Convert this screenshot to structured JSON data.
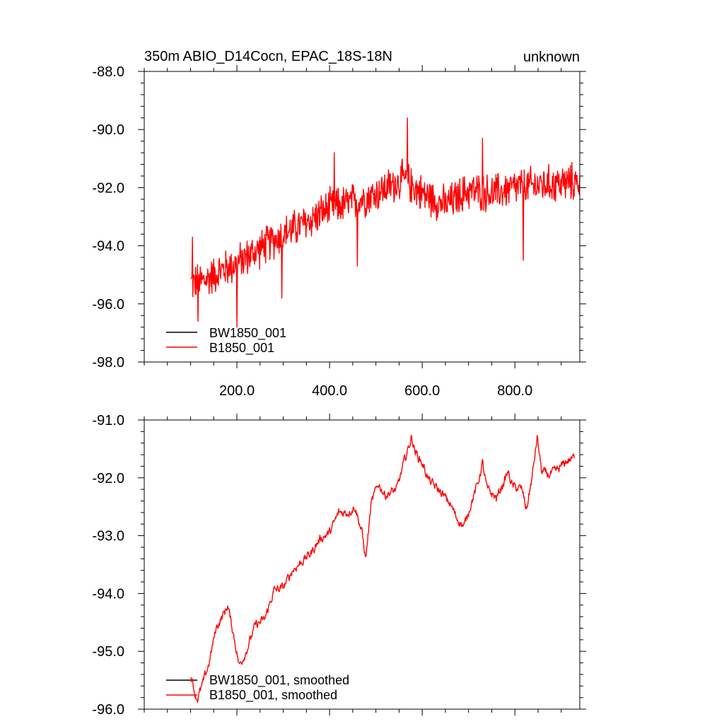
{
  "chart_data": [
    {
      "type": "line",
      "title_left": "350m ABIO_D14Cocn, EPAC_18S-18N",
      "title_right": "unknown",
      "xlim": [
        0,
        940
      ],
      "ylim": [
        -98,
        -88
      ],
      "x_ticks": [
        200,
        400,
        600,
        800
      ],
      "x_tick_labels": [
        "200.0",
        "400.0",
        "600.0",
        "800.0"
      ],
      "x_minor_step": 50,
      "y_ticks": [
        -98,
        -96,
        -94,
        -92,
        -90,
        -88
      ],
      "y_tick_labels": [
        "-98.0",
        "-96.0",
        "-94.0",
        "-92.0",
        "-90.0",
        "-88.0"
      ],
      "y_minor_step": 0.4,
      "legend": [
        {
          "label": "BW1850_001",
          "color": "#000000"
        },
        {
          "label": "B1850_001",
          "color": "#ff0000"
        }
      ],
      "series": [
        {
          "name": "B1850_001",
          "color": "#ff0000",
          "x_start": 101,
          "x_end": 940,
          "anchors": [
            [
              101,
              -95.3
            ],
            [
              130,
              -95.2
            ],
            [
              160,
              -94.9
            ],
            [
              200,
              -94.6
            ],
            [
              250,
              -94.1
            ],
            [
              300,
              -93.6
            ],
            [
              350,
              -93.2
            ],
            [
              400,
              -92.7
            ],
            [
              450,
              -92.5
            ],
            [
              500,
              -92.2
            ],
            [
              560,
              -91.7
            ],
            [
              600,
              -92.2
            ],
            [
              650,
              -92.6
            ],
            [
              700,
              -92.1
            ],
            [
              750,
              -92.2
            ],
            [
              800,
              -92.0
            ],
            [
              860,
              -91.9
            ],
            [
              940,
              -91.8
            ]
          ],
          "noise": 0.55,
          "spikes": [
            [
              104,
              -93.7
            ],
            [
              116,
              -96.6
            ],
            [
              200,
              -96.8
            ],
            [
              297,
              -95.8
            ],
            [
              410,
              -90.8
            ],
            [
              460,
              -94.7
            ],
            [
              568,
              -89.6
            ],
            [
              818,
              -94.5
            ],
            [
              730,
              -90.3
            ]
          ]
        },
        {
          "name": "BW1850_001",
          "color": "#000000",
          "points": []
        }
      ]
    },
    {
      "type": "line",
      "title_left": "",
      "title_right": "",
      "xlim": [
        0,
        940
      ],
      "ylim": [
        -96,
        -91
      ],
      "x_ticks": [
        200,
        400,
        600,
        800
      ],
      "x_tick_labels": [],
      "x_minor_step": 50,
      "y_ticks": [
        -96,
        -95,
        -94,
        -93,
        -92,
        -91
      ],
      "y_tick_labels": [
        "-96.0",
        "-95.0",
        "-94.0",
        "-93.0",
        "-92.0",
        "-91.0"
      ],
      "y_minor_step": 0.2,
      "legend": [
        {
          "label": "BW1850_001, smoothed",
          "color": "#000000"
        },
        {
          "label": "B1850_001, smoothed",
          "color": "#ff0000"
        }
      ],
      "series": [
        {
          "name": "B1850_001, smoothed",
          "color": "#ff0000",
          "x_start": 101,
          "x_end": 928,
          "anchors": [
            [
              101,
              -95.4
            ],
            [
              110,
              -95.75
            ],
            [
              115,
              -95.82
            ],
            [
              125,
              -95.6
            ],
            [
              140,
              -95.2
            ],
            [
              155,
              -94.6
            ],
            [
              175,
              -94.3
            ],
            [
              180,
              -94.2
            ],
            [
              195,
              -94.8
            ],
            [
              205,
              -95.25
            ],
            [
              220,
              -95.0
            ],
            [
              240,
              -94.55
            ],
            [
              260,
              -94.45
            ],
            [
              280,
              -93.95
            ],
            [
              300,
              -93.9
            ],
            [
              320,
              -93.6
            ],
            [
              340,
              -93.45
            ],
            [
              360,
              -93.3
            ],
            [
              380,
              -93.05
            ],
            [
              400,
              -92.95
            ],
            [
              420,
              -92.6
            ],
            [
              440,
              -92.6
            ],
            [
              455,
              -92.5
            ],
            [
              470,
              -92.95
            ],
            [
              478,
              -93.4
            ],
            [
              490,
              -92.45
            ],
            [
              505,
              -92.1
            ],
            [
              520,
              -92.3
            ],
            [
              545,
              -92.2
            ],
            [
              560,
              -91.75
            ],
            [
              577,
              -91.3
            ],
            [
              585,
              -91.55
            ],
            [
              600,
              -91.75
            ],
            [
              615,
              -92.05
            ],
            [
              640,
              -92.25
            ],
            [
              660,
              -92.45
            ],
            [
              675,
              -92.7
            ],
            [
              690,
              -92.85
            ],
            [
              705,
              -92.45
            ],
            [
              720,
              -92.1
            ],
            [
              730,
              -91.75
            ],
            [
              740,
              -92.2
            ],
            [
              760,
              -92.35
            ],
            [
              775,
              -92.1
            ],
            [
              785,
              -91.9
            ],
            [
              795,
              -92.15
            ],
            [
              815,
              -92.2
            ],
            [
              825,
              -92.55
            ],
            [
              838,
              -91.95
            ],
            [
              848,
              -91.3
            ],
            [
              858,
              -91.9
            ],
            [
              875,
              -91.95
            ],
            [
              895,
              -91.85
            ],
            [
              910,
              -91.72
            ],
            [
              928,
              -91.65
            ]
          ],
          "noise": 0.06,
          "spikes": []
        },
        {
          "name": "BW1850_001, smoothed",
          "color": "#000000",
          "points": []
        }
      ]
    }
  ]
}
